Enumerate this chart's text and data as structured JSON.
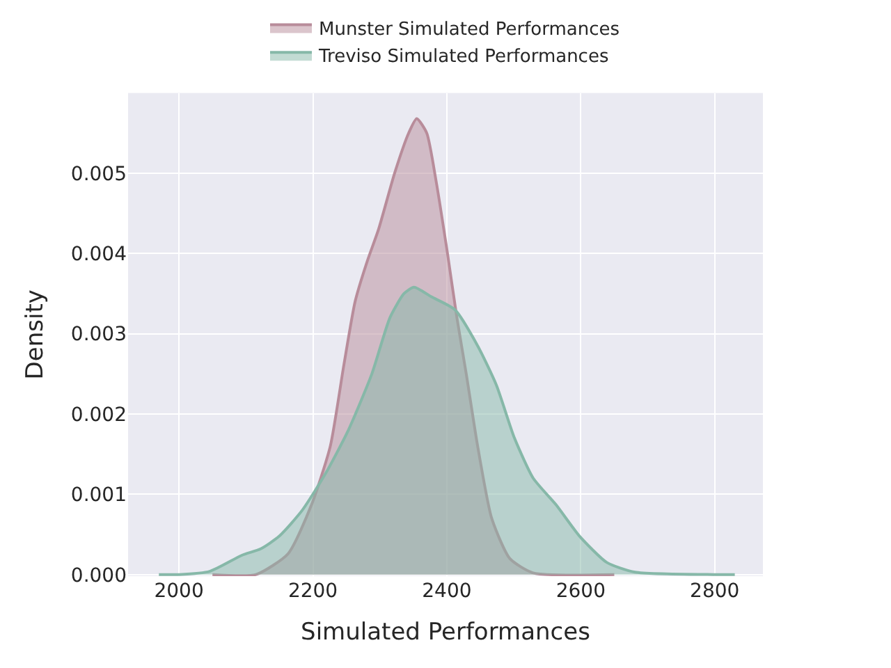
{
  "chart_data": {
    "type": "area",
    "xlabel": "Simulated Performances",
    "ylabel": "Density",
    "xlim": [
      1924,
      2872
    ],
    "ylim": [
      -2e-05,
      0.006
    ],
    "xticks": [
      2000,
      2200,
      2400,
      2600,
      2800
    ],
    "yticks": [
      {
        "value": 0,
        "label": "0.000"
      },
      {
        "value": 0.001,
        "label": "0.001"
      },
      {
        "value": 0.002,
        "label": "0.002"
      },
      {
        "value": 0.003,
        "label": "0.003"
      },
      {
        "value": 0.004,
        "label": "0.004"
      },
      {
        "value": 0.005,
        "label": "0.005"
      }
    ],
    "grid": true,
    "legend": "top",
    "series": [
      {
        "name": "Munster Simulated Performances",
        "color": "#b88c9a",
        "x": [
          2050,
          2115,
          2163,
          2198,
          2226,
          2246,
          2263,
          2281,
          2298,
          2322,
          2343,
          2355,
          2370,
          2384,
          2401,
          2415,
          2429,
          2446,
          2467,
          2494,
          2529,
          2650
        ],
        "values": [
          0,
          0,
          0.00026,
          0.00087,
          0.0016,
          0.0026,
          0.0034,
          0.0039,
          0.0043,
          0.005,
          0.0055,
          0.00568,
          0.0055,
          0.0049,
          0.004,
          0.0032,
          0.0025,
          0.0016,
          0.0007,
          0.0002,
          2e-05,
          0
        ]
      },
      {
        "name": "Treviso Simulated Performances",
        "color": "#86b8a8",
        "x": [
          1970,
          2000,
          2046,
          2094,
          2122,
          2150,
          2184,
          2219,
          2253,
          2288,
          2315,
          2336,
          2351,
          2377,
          2412,
          2446,
          2474,
          2501,
          2529,
          2563,
          2598,
          2639,
          2681,
          2798,
          2830
        ],
        "values": [
          0,
          0,
          4e-05,
          0.00024,
          0.00032,
          0.00048,
          0.0008,
          0.00126,
          0.0018,
          0.0025,
          0.0032,
          0.0035,
          0.00358,
          0.00346,
          0.0033,
          0.00285,
          0.00236,
          0.0017,
          0.0012,
          0.00087,
          0.00048,
          0.00015,
          3e-05,
          0,
          0
        ]
      }
    ]
  }
}
